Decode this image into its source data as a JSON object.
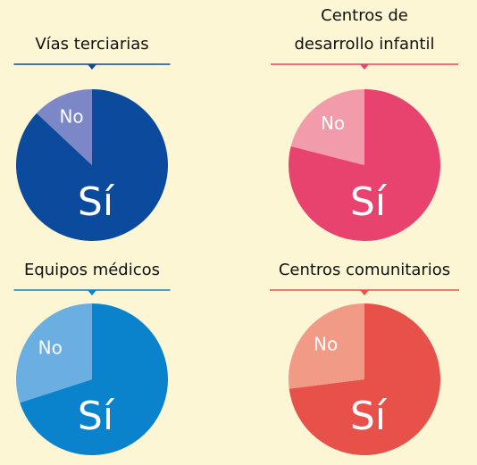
{
  "chart_data": [
    {
      "type": "pie",
      "title": "Vías terciarias",
      "categories": [
        "Sí",
        "No"
      ],
      "values": [
        87,
        13
      ],
      "colors": [
        "#0b4a9d",
        "#7b87c7"
      ]
    },
    {
      "type": "pie",
      "title": "Centros de desarrollo infantil",
      "categories": [
        "Sí",
        "No"
      ],
      "values": [
        79,
        21
      ],
      "colors": [
        "#e8436f",
        "#f29bab"
      ]
    },
    {
      "type": "pie",
      "title": "Equipos médicos",
      "categories": [
        "Sí",
        "No"
      ],
      "values": [
        70,
        30
      ],
      "colors": [
        "#0a83cc",
        "#6baee1"
      ]
    },
    {
      "type": "pie",
      "title": "Centros comunitarios",
      "categories": [
        "Sí",
        "No"
      ],
      "values": [
        73,
        27
      ],
      "colors": [
        "#e8504a",
        "#f19b86"
      ]
    }
  ]
}
